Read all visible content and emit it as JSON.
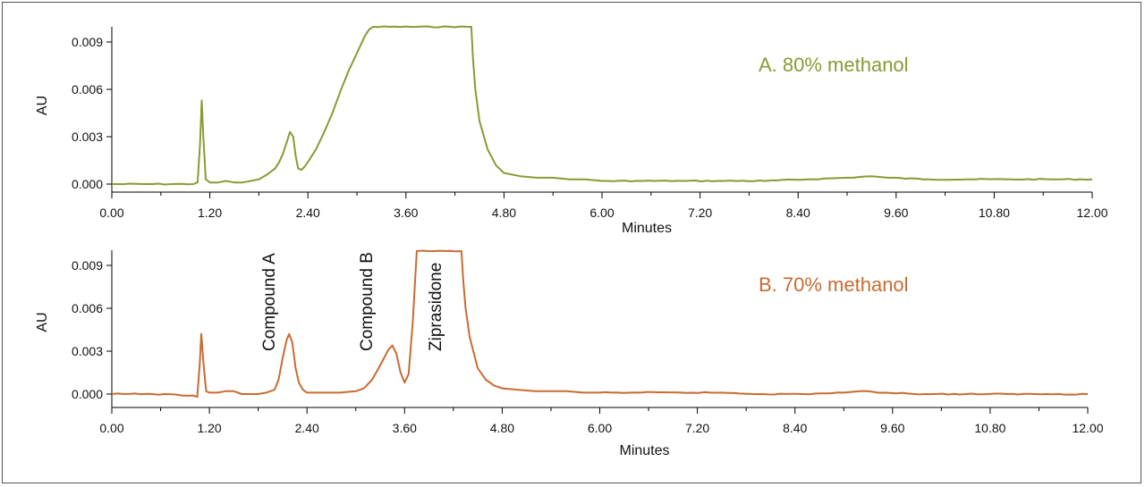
{
  "chart_data": [
    {
      "type": "line",
      "panel_label": "A. 80% methanol",
      "xlabel": "Minutes",
      "ylabel": "AU",
      "xlim": [
        0,
        12
      ],
      "ylim": [
        -0.0005,
        0.01
      ],
      "x_ticks": [
        "0.00",
        "1.20",
        "2.40",
        "3.60",
        "4.80",
        "6.00",
        "7.20",
        "8.40",
        "9.60",
        "10.80",
        "12.00"
      ],
      "y_ticks": [
        "0.000",
        "0.003",
        "0.006",
        "0.009"
      ],
      "color": "#8a9a34",
      "annotations": [],
      "series": [
        {
          "x": [
            0.0,
            0.5,
            1.0,
            1.05,
            1.08,
            1.1,
            1.12,
            1.15,
            1.2,
            1.3,
            1.4,
            1.5,
            1.6,
            1.7,
            1.8,
            1.9,
            2.0,
            2.05,
            2.1,
            2.15,
            2.18,
            2.22,
            2.25,
            2.28,
            2.32,
            2.36,
            2.4,
            2.5,
            2.6,
            2.7,
            2.8,
            2.9,
            3.0,
            3.1,
            3.15,
            3.2,
            4.4,
            4.42,
            4.45,
            4.5,
            4.6,
            4.7,
            4.8,
            5.0,
            5.2,
            5.4,
            5.6,
            5.8,
            6.0,
            6.5,
            7.0,
            7.5,
            8.0,
            8.5,
            9.0,
            9.3,
            9.5,
            10.0,
            10.5,
            11.0,
            11.5,
            12.0
          ],
          "y": [
            0.0,
            0.0,
            0.0,
            0.0001,
            0.0025,
            0.0053,
            0.003,
            0.0003,
            0.0001,
            0.0001,
            0.0002,
            0.0001,
            0.0001,
            0.0002,
            0.0003,
            0.0006,
            0.001,
            0.0014,
            0.002,
            0.0028,
            0.0033,
            0.003,
            0.0018,
            0.001,
            0.0009,
            0.0011,
            0.0014,
            0.0022,
            0.0033,
            0.0045,
            0.0059,
            0.0072,
            0.0083,
            0.0094,
            0.0098,
            0.01,
            0.01,
            0.008,
            0.006,
            0.004,
            0.0022,
            0.0012,
            0.0007,
            0.0005,
            0.0004,
            0.0004,
            0.0003,
            0.0003,
            0.0002,
            0.0002,
            0.0002,
            0.0002,
            0.0002,
            0.0003,
            0.0004,
            0.0005,
            0.0004,
            0.0003,
            0.0003,
            0.0003,
            0.0003,
            0.0003
          ]
        }
      ]
    },
    {
      "type": "line",
      "panel_label": "B. 70% methanol",
      "xlabel": "Minutes",
      "ylabel": "AU",
      "xlim": [
        0,
        12
      ],
      "ylim": [
        -0.0005,
        0.01
      ],
      "x_ticks": [
        "0.00",
        "1.20",
        "2.40",
        "3.60",
        "4.80",
        "6.00",
        "7.20",
        "8.40",
        "9.60",
        "10.80",
        "12.00"
      ],
      "y_ticks": [
        "0.000",
        "0.003",
        "0.006",
        "0.009"
      ],
      "color": "#c96b32",
      "annotations": [
        {
          "text": "Compound A",
          "x": 2.0
        },
        {
          "text": "Compound B",
          "x": 3.2
        },
        {
          "text": "Ziprasidone",
          "x": 4.05
        }
      ],
      "series": [
        {
          "x": [
            0.0,
            0.5,
            1.0,
            1.05,
            1.08,
            1.1,
            1.13,
            1.16,
            1.2,
            1.3,
            1.4,
            1.5,
            1.6,
            1.7,
            1.8,
            1.9,
            2.0,
            2.05,
            2.1,
            2.15,
            2.18,
            2.22,
            2.26,
            2.3,
            2.35,
            2.4,
            2.6,
            2.8,
            3.0,
            3.1,
            3.2,
            3.3,
            3.4,
            3.45,
            3.5,
            3.55,
            3.6,
            3.65,
            3.7,
            3.75,
            4.3,
            4.32,
            4.35,
            4.4,
            4.5,
            4.6,
            4.7,
            4.8,
            5.0,
            5.2,
            5.4,
            5.6,
            5.8,
            6.0,
            6.5,
            7.0,
            7.5,
            8.0,
            8.5,
            9.0,
            9.2,
            9.5,
            10.0,
            10.5,
            11.0,
            11.5,
            12.0
          ],
          "y": [
            0.0,
            0.0,
            -0.0001,
            -0.0002,
            0.002,
            0.0042,
            0.002,
            0.0002,
            0.0001,
            0.0001,
            0.0002,
            0.0002,
            0.0,
            0.0,
            0.0,
            0.0001,
            0.0003,
            0.001,
            0.0025,
            0.0038,
            0.0042,
            0.0036,
            0.0018,
            0.0008,
            0.0003,
            0.0001,
            0.0001,
            0.0001,
            0.0002,
            0.0004,
            0.001,
            0.002,
            0.0031,
            0.0034,
            0.0028,
            0.0015,
            0.0008,
            0.0014,
            0.005,
            0.01,
            0.01,
            0.008,
            0.006,
            0.004,
            0.0018,
            0.001,
            0.0006,
            0.0004,
            0.0003,
            0.0002,
            0.0002,
            0.0002,
            0.0001,
            0.0001,
            0.0001,
            0.0001,
            0.0001,
            0.0,
            0.0,
            0.0001,
            0.0002,
            0.0001,
            0.0,
            0.0,
            0.0,
            0.0,
            0.0
          ]
        }
      ]
    }
  ]
}
